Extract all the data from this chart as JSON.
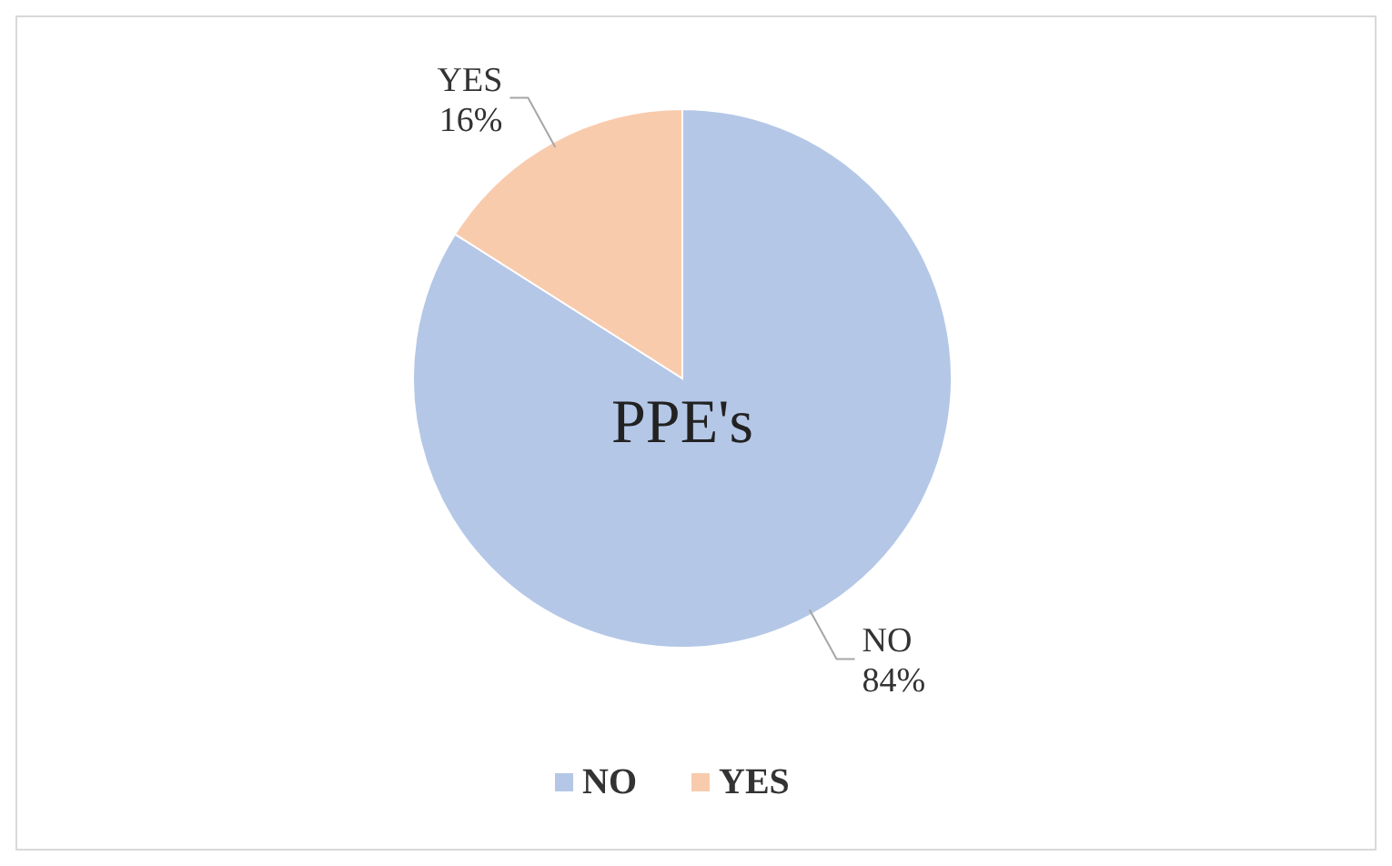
{
  "chart_data": {
    "type": "pie",
    "title": "PPE's",
    "categories": [
      "NO",
      "YES"
    ],
    "values": [
      84,
      16
    ],
    "colors": [
      "#b4c7e7",
      "#f8cbad"
    ],
    "value_labels": [
      "84%",
      "16%"
    ],
    "legend": "bottom"
  }
}
